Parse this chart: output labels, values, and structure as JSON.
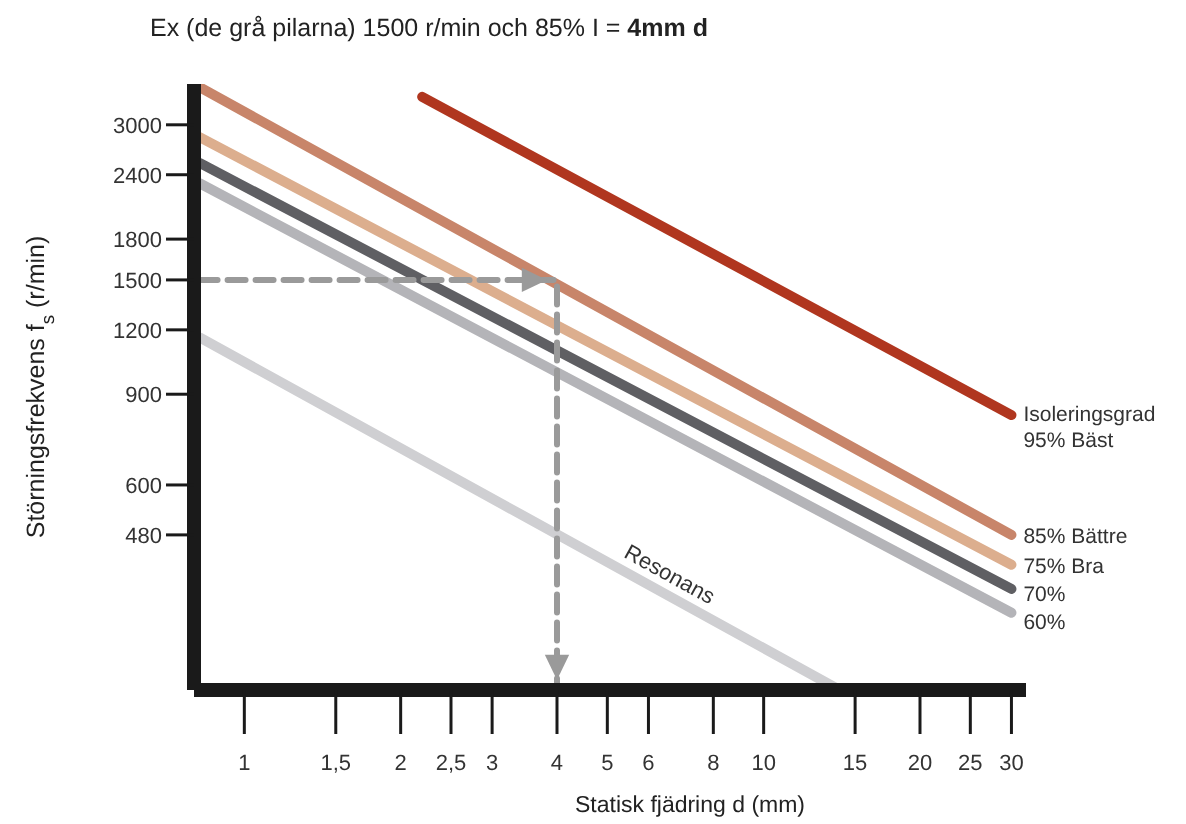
{
  "chart_data": {
    "type": "line",
    "title": "Ex (de grå pilarna) 1500 r/min och 85% I = 4mm d",
    "xlabel": "Statisk fjädring d (mm)",
    "ylabel": "Störningsfrekvens f$_{s}$ (r/min)",
    "legend_title": "Isoleringsgrad",
    "log": "xy",
    "xlim": [
      0.8,
      32
    ],
    "ylim": [
      240,
      3600
    ],
    "xticks": [
      1,
      {
        "value": 1.5,
        "label": "1,5"
      },
      2,
      {
        "value": 2.5,
        "label": "2,5"
      },
      3,
      4,
      5,
      6,
      8,
      10,
      15,
      20,
      25,
      30
    ],
    "yticks": [
      480,
      600,
      900,
      1200,
      1500,
      1800,
      2400,
      3000
    ],
    "series": [
      {
        "name": "95% Bäst",
        "color": "#b0361f",
        "x": [
          2.2,
          30
        ],
        "values": [
          3400,
          820
        ]
      },
      {
        "name": "85% Bättre",
        "color": "#c8856a",
        "x": [
          0.82,
          30
        ],
        "values": [
          3550,
          480
        ]
      },
      {
        "name": "75% Bra",
        "color": "#dcae8e",
        "x": [
          0.82,
          30
        ],
        "values": [
          2840,
          420
        ]
      },
      {
        "name": "70%",
        "color": "#5f5f63",
        "x": [
          0.82,
          30
        ],
        "values": [
          2530,
          377
        ]
      },
      {
        "name": "60%",
        "color": "#b4b4b8",
        "x": [
          0.82,
          30
        ],
        "values": [
          2310,
          339
        ]
      },
      {
        "name": "Resonans",
        "color": "#cfcfd2",
        "x": [
          0.82,
          14
        ],
        "values": [
          1160,
          240
        ]
      },
      {
        "color": "#9a9a9a",
        "line_style": "dashed",
        "x": [
          0.82,
          4,
          4
        ],
        "values": [
          1500,
          1500,
          240
        ]
      }
    ]
  }
}
